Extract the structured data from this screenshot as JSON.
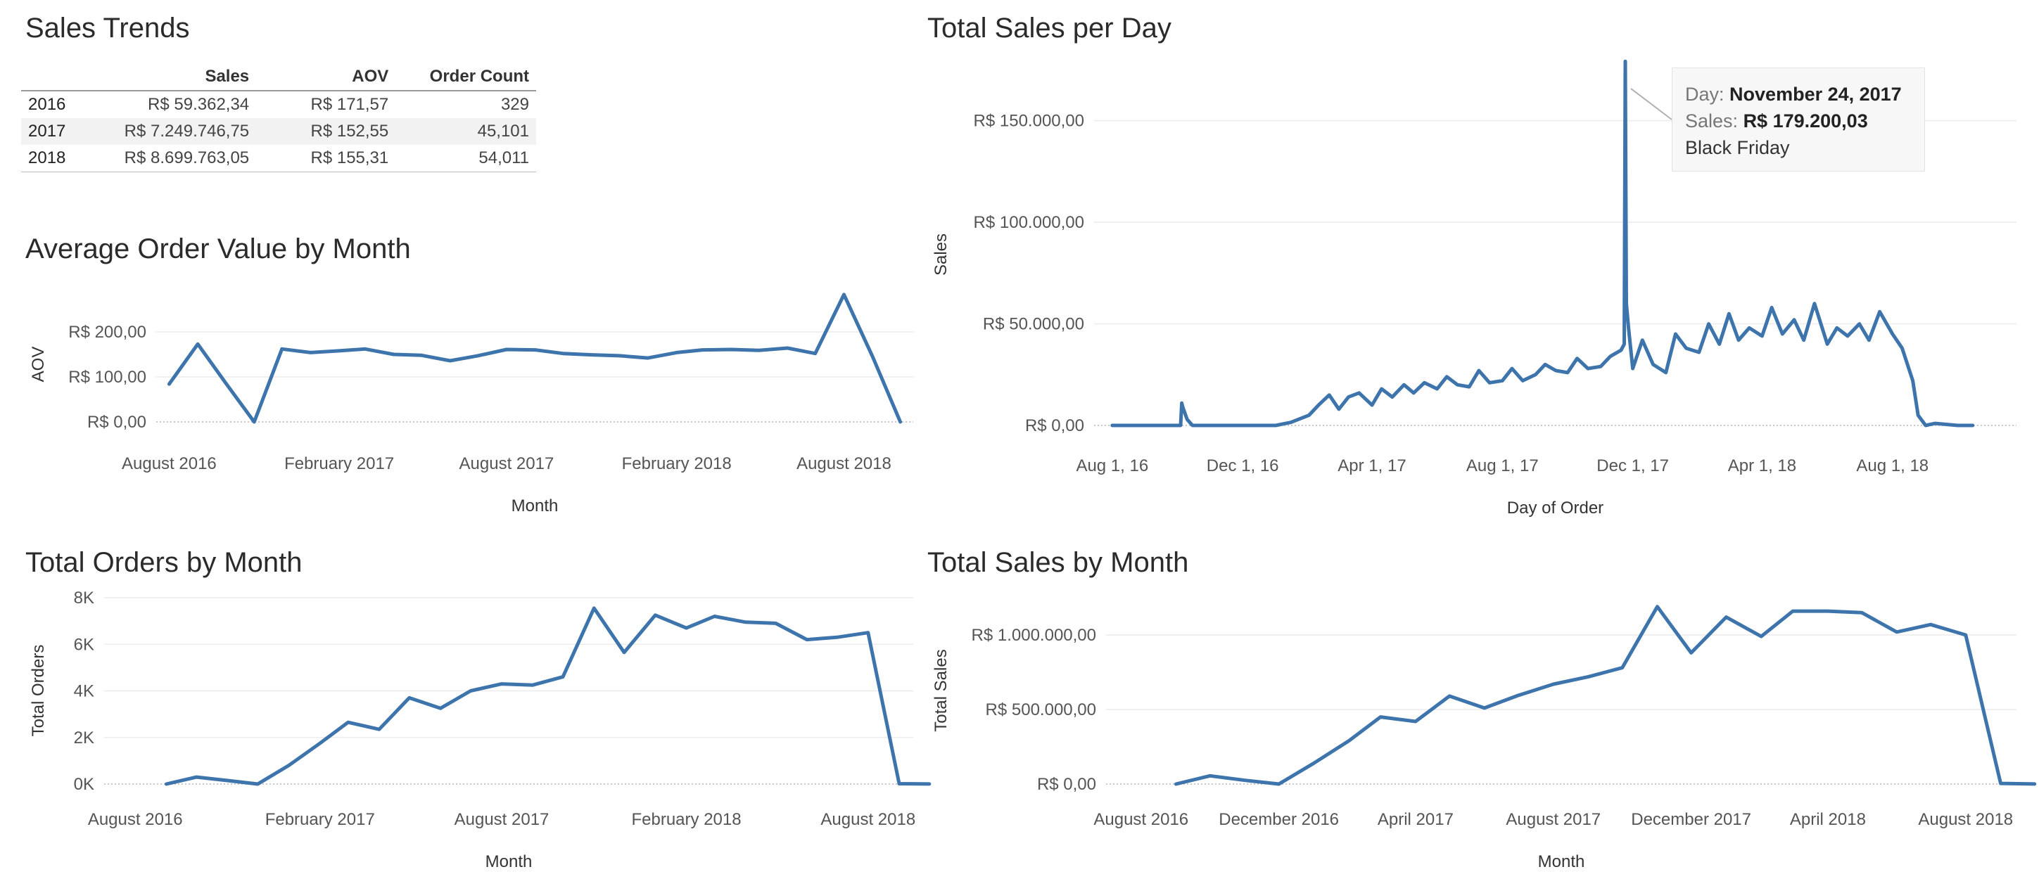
{
  "colors": {
    "line": "#3e74ac",
    "grid": "#ececec",
    "axis": "#555555",
    "zero": "#b5b5b5"
  },
  "sales_trends": {
    "title": "Sales Trends",
    "columns": [
      "Sales",
      "AOV",
      "Order Count"
    ],
    "rows": [
      {
        "year": "2016",
        "sales": "R$ 59.362,34",
        "aov": "R$ 171,57",
        "orders": "329"
      },
      {
        "year": "2017",
        "sales": "R$ 7.249.746,75",
        "aov": "R$ 152,55",
        "orders": "45,101"
      },
      {
        "year": "2018",
        "sales": "R$ 8.699.763,05",
        "aov": "R$ 155,31",
        "orders": "54,011"
      }
    ]
  },
  "tooltip": {
    "day_label": "Day:",
    "day_value": "November 24, 2017",
    "sales_label": "Sales:",
    "sales_value": "R$ 179.200,03",
    "note": "Black Friday"
  },
  "chart_data": [
    {
      "id": "aov",
      "type": "line",
      "title": "Average Order Value by Month",
      "xlabel": "Month",
      "ylabel": "AOV",
      "xticks": [
        "August 2016",
        "February 2017",
        "August 2017",
        "February 2018",
        "August 2018"
      ],
      "yticks": [
        "R$ 200,00",
        "R$ 100,00",
        "R$ 0,00"
      ],
      "ylim": [
        0,
        250
      ],
      "x": [
        "2016-08",
        "2016-09",
        "2016-10",
        "2016-11",
        "2016-12",
        "2017-01",
        "2017-02",
        "2017-03",
        "2017-04",
        "2017-05",
        "2017-06",
        "2017-07",
        "2017-08",
        "2017-09",
        "2017-10",
        "2017-11",
        "2017-12",
        "2018-01",
        "2018-02",
        "2018-03",
        "2018-04",
        "2018-05",
        "2018-06",
        "2018-07",
        "2018-08",
        "2018-09",
        "2018-10"
      ],
      "values": [
        84,
        173,
        87,
        0,
        162,
        154,
        158,
        162,
        150,
        148,
        136,
        147,
        161,
        160,
        152,
        149,
        147,
        142,
        154,
        160,
        161,
        159,
        164,
        152,
        283,
        145,
        0
      ]
    },
    {
      "id": "daily",
      "type": "line",
      "title": "Total Sales per Day",
      "xlabel": "Day of Order",
      "ylabel": "Sales",
      "xticks": [
        "Aug 1, 16",
        "Dec 1, 16",
        "Apr 1, 17",
        "Aug 1, 17",
        "Dec 1, 17",
        "Apr 1, 18",
        "Aug 1, 18"
      ],
      "yticks": [
        "R$ 150.000,00",
        "R$ 100.000,00",
        "R$ 50.000,00",
        "R$ 0,00"
      ],
      "ylim": [
        0,
        180000
      ],
      "x": [
        "2016-08-01",
        "2016-09-01",
        "2016-10-01",
        "2016-10-04",
        "2016-10-05",
        "2016-10-06",
        "2016-10-10",
        "2016-10-15",
        "2016-11-01",
        "2016-12-01",
        "2017-01-01",
        "2017-01-15",
        "2017-02-01",
        "2017-02-10",
        "2017-02-20",
        "2017-03-01",
        "2017-03-10",
        "2017-03-20",
        "2017-04-01",
        "2017-04-10",
        "2017-04-20",
        "2017-05-01",
        "2017-05-10",
        "2017-05-20",
        "2017-06-01",
        "2017-06-10",
        "2017-06-20",
        "2017-07-01",
        "2017-07-10",
        "2017-07-20",
        "2017-08-01",
        "2017-08-10",
        "2017-08-20",
        "2017-09-01",
        "2017-09-10",
        "2017-09-20",
        "2017-10-01",
        "2017-10-10",
        "2017-10-20",
        "2017-11-01",
        "2017-11-10",
        "2017-11-20",
        "2017-11-23",
        "2017-11-24",
        "2017-11-25",
        "2017-11-27",
        "2017-12-01",
        "2017-12-10",
        "2017-12-20",
        "2018-01-01",
        "2018-01-10",
        "2018-01-20",
        "2018-02-01",
        "2018-02-10",
        "2018-02-20",
        "2018-03-01",
        "2018-03-10",
        "2018-03-20",
        "2018-04-01",
        "2018-04-10",
        "2018-04-20",
        "2018-05-01",
        "2018-05-10",
        "2018-05-20",
        "2018-06-01",
        "2018-06-10",
        "2018-06-20",
        "2018-07-01",
        "2018-07-10",
        "2018-07-20",
        "2018-08-01",
        "2018-08-10",
        "2018-08-20",
        "2018-08-25",
        "2018-09-01",
        "2018-09-10",
        "2018-10-01",
        "2018-10-15"
      ],
      "values": [
        0,
        0,
        0,
        0,
        11000,
        9000,
        3000,
        0,
        0,
        0,
        0,
        1500,
        5000,
        10000,
        15000,
        8000,
        14000,
        16000,
        10000,
        18000,
        14000,
        20000,
        16000,
        21000,
        18000,
        24000,
        20000,
        19000,
        27000,
        21000,
        22000,
        28000,
        22000,
        25000,
        30000,
        27000,
        26000,
        33000,
        28000,
        29000,
        34000,
        37000,
        40000,
        179200,
        60000,
        48000,
        28000,
        42000,
        30000,
        26000,
        45000,
        38000,
        36000,
        50000,
        40000,
        55000,
        42000,
        48000,
        44000,
        58000,
        45000,
        52000,
        42000,
        60000,
        40000,
        48000,
        44000,
        50000,
        42000,
        56000,
        45000,
        38000,
        22000,
        5000,
        0,
        1000,
        0,
        0
      ]
    },
    {
      "id": "orders",
      "type": "line",
      "title": "Total Orders by Month",
      "xlabel": "Month",
      "ylabel": "Total Orders",
      "xticks": [
        "August 2016",
        "February 2017",
        "August 2017",
        "February 2018",
        "August 2018"
      ],
      "yticks": [
        "8K",
        "6K",
        "4K",
        "2K",
        "0K"
      ],
      "ylim": [
        0,
        8000
      ],
      "x": [
        "2016-09",
        "2016-10",
        "2016-11",
        "2016-12",
        "2017-01",
        "2017-02",
        "2017-03",
        "2017-04",
        "2017-05",
        "2017-06",
        "2017-07",
        "2017-08",
        "2017-09",
        "2017-10",
        "2017-11",
        "2017-12",
        "2018-01",
        "2018-02",
        "2018-03",
        "2018-04",
        "2018-05",
        "2018-06",
        "2018-07",
        "2018-08",
        "2018-09",
        "2018-10"
      ],
      "values": [
        0,
        300,
        150,
        0,
        800,
        1750,
        2650,
        2350,
        3700,
        3250,
        4000,
        4300,
        4250,
        4600,
        7550,
        5650,
        7250,
        6700,
        7200,
        6950,
        6900,
        6200,
        6300,
        6500,
        16,
        4
      ]
    },
    {
      "id": "monthly_sales",
      "type": "line",
      "title": "Total Sales by Month",
      "xlabel": "Month",
      "ylabel": "Total Sales",
      "xticks": [
        "August 2016",
        "December 2016",
        "April 2017",
        "August 2017",
        "December 2017",
        "April 2018",
        "August 2018"
      ],
      "yticks": [
        "R$ 1.000.000,00",
        "R$ 500.000,00",
        "R$ 0,00"
      ],
      "ylim": [
        0,
        1250000
      ],
      "x": [
        "2016-09",
        "2016-10",
        "2016-11",
        "2016-12",
        "2017-01",
        "2017-02",
        "2017-03",
        "2017-04",
        "2017-05",
        "2017-06",
        "2017-07",
        "2017-08",
        "2017-09",
        "2017-10",
        "2017-11",
        "2017-12",
        "2018-01",
        "2018-02",
        "2018-03",
        "2018-04",
        "2018-05",
        "2018-06",
        "2018-07",
        "2018-08",
        "2018-09",
        "2018-10"
      ],
      "values": [
        0,
        55000,
        25000,
        0,
        140000,
        290000,
        450000,
        420000,
        590000,
        510000,
        595000,
        670000,
        720000,
        780000,
        1190000,
        880000,
        1120000,
        990000,
        1160000,
        1160000,
        1150000,
        1020000,
        1070000,
        1000000,
        4400,
        590
      ]
    }
  ]
}
